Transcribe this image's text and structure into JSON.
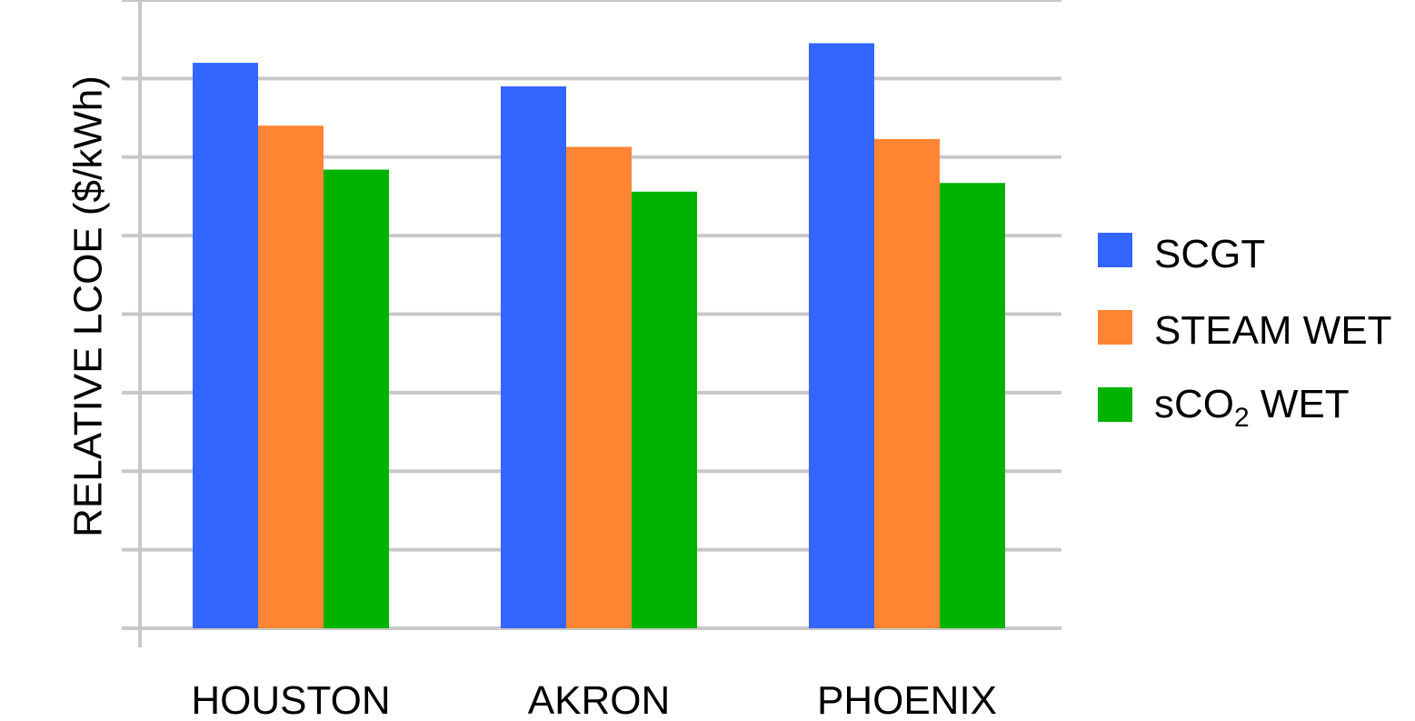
{
  "chart_data": {
    "type": "bar",
    "title": "",
    "xlabel": "",
    "ylabel": "RELATIVE LCOE ($/kWh)",
    "y_tick_labels_shown": false,
    "ylim": [
      0,
      8
    ],
    "grid": true,
    "legend_position": "right",
    "categories": [
      "HOUSTON",
      "AKRON",
      "PHOENIX"
    ],
    "series": [
      {
        "name": "SCGT",
        "color": "#3366ff",
        "values": [
          7.2,
          6.9,
          7.45
        ]
      },
      {
        "name": "STEAM WET",
        "color": "#ff8533",
        "values": [
          6.4,
          6.13,
          6.23
        ]
      },
      {
        "name": "sCO2 WET",
        "color": "#00b300",
        "values": [
          5.84,
          5.56,
          5.67
        ]
      }
    ]
  },
  "legend": {
    "items": [
      {
        "label": "SCGT",
        "color": "#3366ff"
      },
      {
        "label": "STEAM WET",
        "color": "#ff8533"
      },
      {
        "label_main": "sCO",
        "label_sub": "2",
        "label_tail": " WET",
        "color": "#00b300"
      }
    ]
  }
}
